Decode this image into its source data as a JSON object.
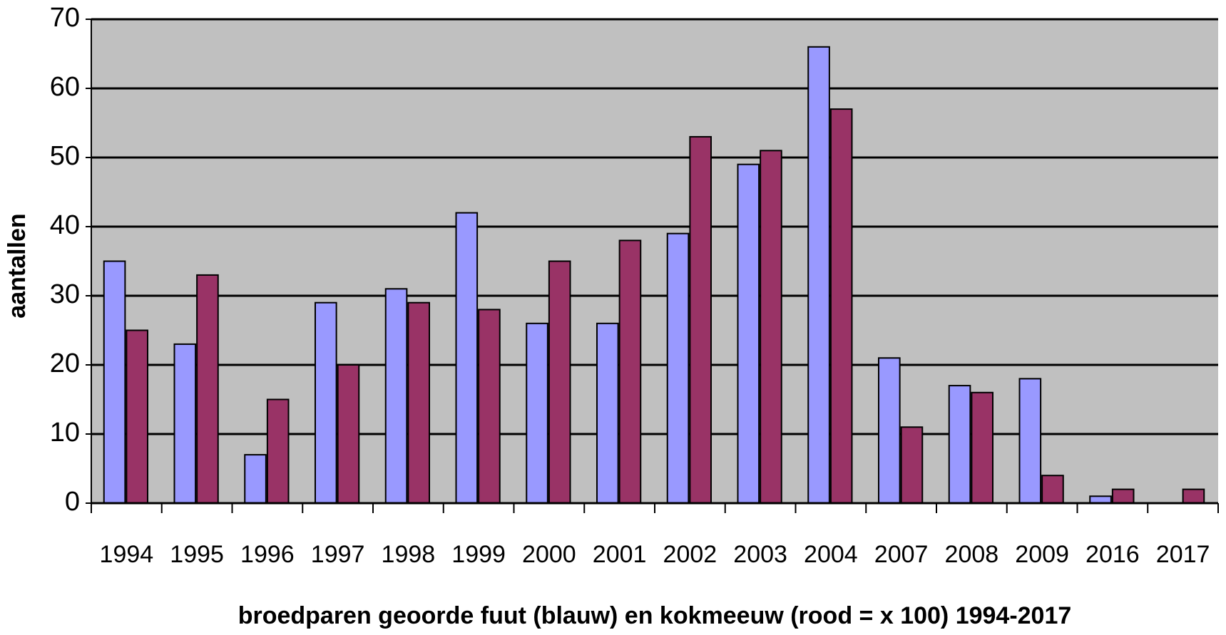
{
  "chart_data": {
    "type": "bar",
    "title": "broedparen geoorde fuut (blauw) en kokmeeuw (rood = x 100) 1994-2017",
    "y_label": "aantallen",
    "categories": [
      "1994",
      "1995",
      "1996",
      "1997",
      "1998",
      "1999",
      "2000",
      "2001",
      "2002",
      "2003",
      "2004",
      "2007",
      "2008",
      "2009",
      "2016",
      "2017"
    ],
    "series": [
      {
        "color": "#9999ff",
        "values": [
          35,
          23,
          7,
          29,
          31,
          42,
          26,
          26,
          39,
          49,
          66,
          21,
          17,
          18,
          1,
          0
        ]
      },
      {
        "color": "#993366",
        "values": [
          25,
          33,
          15,
          20,
          29,
          28,
          35,
          38,
          53,
          51,
          57,
          11,
          16,
          4,
          2,
          2
        ]
      }
    ],
    "ylim": [
      0,
      70
    ],
    "yticks": [
      0,
      10,
      20,
      30,
      40,
      50,
      60,
      70
    ],
    "grid": true,
    "plot_background": "#c0c0c0"
  }
}
